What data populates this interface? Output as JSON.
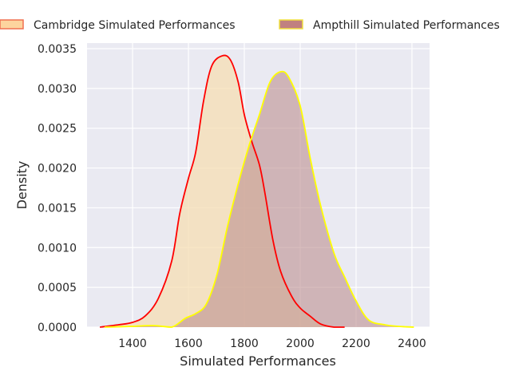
{
  "chart_data": {
    "type": "area",
    "title": "",
    "xlabel": "Simulated Performances",
    "ylabel": "Density",
    "xlim": [
      1237,
      2463
    ],
    "ylim": [
      0,
      0.00357
    ],
    "xticks": [
      1400,
      1600,
      1800,
      2000,
      2200,
      2400
    ],
    "xtick_labels": [
      "1400",
      "1600",
      "1800",
      "2000",
      "2200",
      "2400"
    ],
    "yticks": [
      0,
      0.0005,
      0.001,
      0.0015,
      0.002,
      0.0025,
      0.003,
      0.0035
    ],
    "ytick_labels": [
      "0.0000",
      "0.0005",
      "0.0010",
      "0.0015",
      "0.0020",
      "0.0025",
      "0.0030",
      "0.0035"
    ],
    "grid": true,
    "legend_position": "top",
    "series": [
      {
        "name": "Cambridge Simulated Performances",
        "line_color": "#ff0000",
        "fill_color": "#f5deb3",
        "swatch_color": "#fdd49e",
        "swatch_edge": "#f07050",
        "x": [
          1283,
          1350,
          1400,
          1445,
          1492,
          1540,
          1569,
          1600,
          1626,
          1654,
          1683,
          1721,
          1750,
          1778,
          1800,
          1826,
          1854,
          1873,
          1902,
          1930,
          1969,
          2000,
          2035,
          2073,
          2121,
          2159
        ],
        "y": [
          0,
          3e-05,
          6e-05,
          0.00014,
          0.00036,
          0.00083,
          0.00143,
          0.00187,
          0.0022,
          0.00284,
          0.00328,
          0.00341,
          0.00336,
          0.00308,
          0.00267,
          0.00234,
          0.00204,
          0.0017,
          0.0011,
          0.0007,
          0.00039,
          0.00024,
          0.00014,
          4e-05,
          0,
          0
        ]
      },
      {
        "name": "Ampthill Simulated Performances",
        "line_color": "#ffff00",
        "fill_color": "#bc8f8f",
        "swatch_color": "#c08080",
        "swatch_edge": "#f0e040",
        "x": [
          1300,
          1397,
          1473,
          1540,
          1588,
          1626,
          1664,
          1702,
          1740,
          1778,
          1816,
          1854,
          1892,
          1930,
          1959,
          2000,
          2035,
          2073,
          2121,
          2159,
          2200,
          2245,
          2302,
          2350,
          2407
        ],
        "y": [
          0,
          1e-05,
          2e-05,
          0,
          0.00011,
          0.00017,
          0.00029,
          0.00066,
          0.00127,
          0.0018,
          0.00227,
          0.00267,
          0.00308,
          0.00321,
          0.00314,
          0.00278,
          0.00214,
          0.00153,
          0.00093,
          0.00063,
          0.00033,
          9e-05,
          3e-05,
          1e-05,
          0
        ]
      }
    ]
  }
}
